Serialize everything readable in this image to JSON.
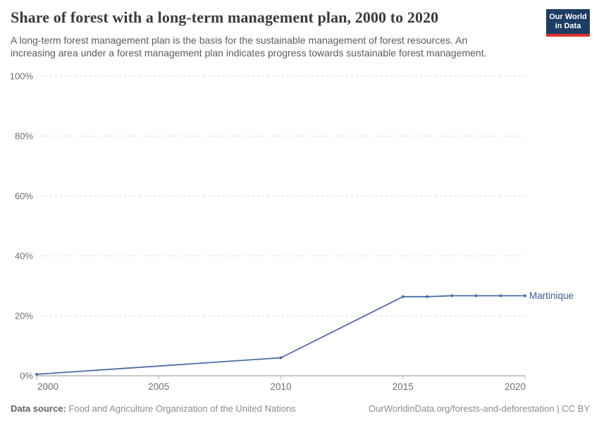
{
  "header": {
    "title": "Share of forest with a long-term management plan, 2000 to 2020",
    "subtitle": "A long-term forest management plan is the basis for the sustainable management of forest resources. An increasing area under a forest management plan indicates progress towards sustainable forest management.",
    "logo": {
      "line1": "Our World",
      "line2": "in Data",
      "bg_color": "#1d3d63",
      "accent_color": "#e0362c"
    }
  },
  "chart_data": {
    "type": "line",
    "title": "Share of forest with a long-term management plan, 2000 to 2020",
    "xlabel": "",
    "ylabel": "",
    "xlim": [
      2000,
      2020
    ],
    "ylim": [
      0,
      100
    ],
    "x_ticks": [
      2000,
      2005,
      2010,
      2015,
      2020
    ],
    "y_ticks": [
      0,
      20,
      40,
      60,
      80,
      100
    ],
    "y_tick_suffix": "%",
    "grid": "horizontal-dashed",
    "legend_position": "end-of-line",
    "colors": {
      "gridline": "#d9d9d9",
      "axis_line": "#8f8f8f",
      "tick_mark": "#b3b3b3",
      "tick_label": "#6e6e6e",
      "series_label": "#3d5a8f"
    },
    "series": [
      {
        "name": "Martinique",
        "color": "#4a6da8",
        "points": [
          [
            2000,
            0.5
          ],
          [
            2010,
            6.0
          ],
          [
            2015,
            26.4
          ],
          [
            2016,
            26.4
          ],
          [
            2017,
            26.7
          ],
          [
            2018,
            26.7
          ],
          [
            2019,
            26.7
          ],
          [
            2020,
            26.7
          ]
        ]
      }
    ]
  },
  "footer": {
    "source_label": "Data source:",
    "source_text": "Food and Agriculture Organization of the United Nations",
    "link_text": "OurWorldinData.org/forests-and-deforestation | CC BY"
  }
}
